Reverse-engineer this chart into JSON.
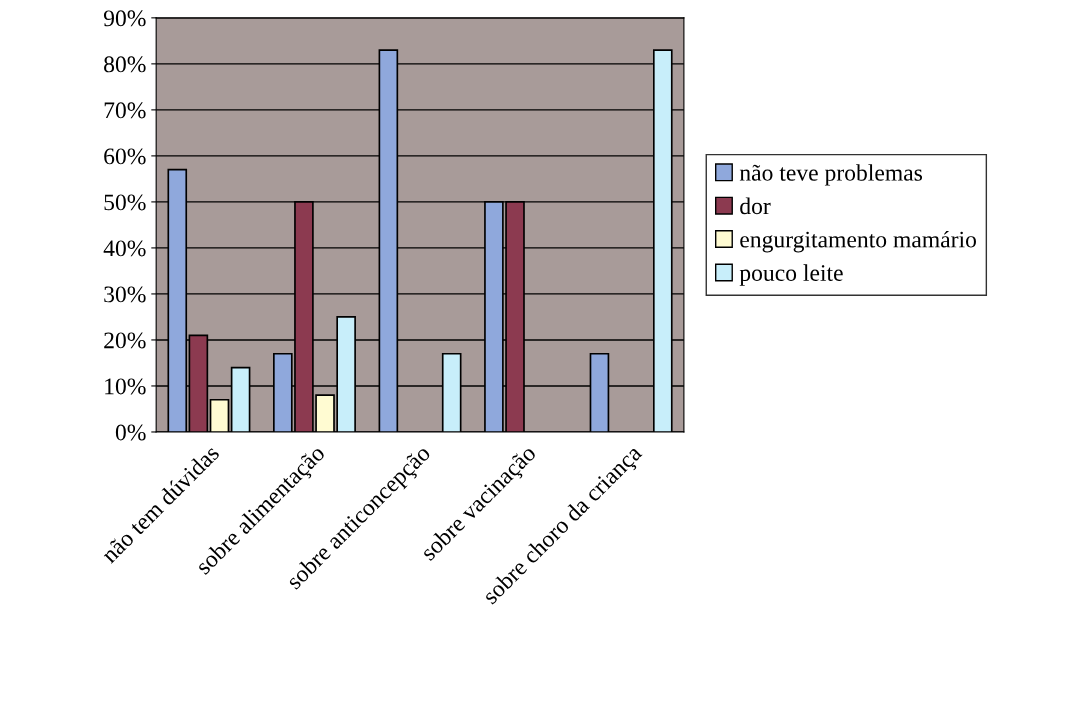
{
  "chart_data": {
    "type": "bar",
    "categories": [
      "não tem dúvidas",
      "sobre alimentação",
      "sobre anticoncepção",
      "sobre vacinação",
      "sobre choro da criança"
    ],
    "series": [
      {
        "name": "não teve problemas",
        "color": "#8fa8dc",
        "values": [
          57,
          17,
          83,
          50,
          17
        ]
      },
      {
        "name": "dor",
        "color": "#8c3a50",
        "values": [
          21,
          50,
          null,
          50,
          null
        ]
      },
      {
        "name": "engurgitamento mamário",
        "color": "#fffbd2",
        "values": [
          7,
          8,
          null,
          null,
          null
        ]
      },
      {
        "name": "pouco leite",
        "color": "#c8eefa",
        "values": [
          14,
          25,
          17,
          null,
          83
        ]
      }
    ],
    "ylim": [
      0,
      90
    ],
    "yticks": [
      {
        "value": 0,
        "label": "0%"
      },
      {
        "value": 10,
        "label": "10%"
      },
      {
        "value": 20,
        "label": "20%"
      },
      {
        "value": 30,
        "label": "30%"
      },
      {
        "value": 40,
        "label": "40%"
      },
      {
        "value": 50,
        "label": "50%"
      },
      {
        "value": 60,
        "label": "60%"
      },
      {
        "value": 70,
        "label": "70%"
      },
      {
        "value": 80,
        "label": "80%"
      },
      {
        "value": 90,
        "label": "90%"
      }
    ],
    "grid": "y",
    "legend": "right"
  }
}
